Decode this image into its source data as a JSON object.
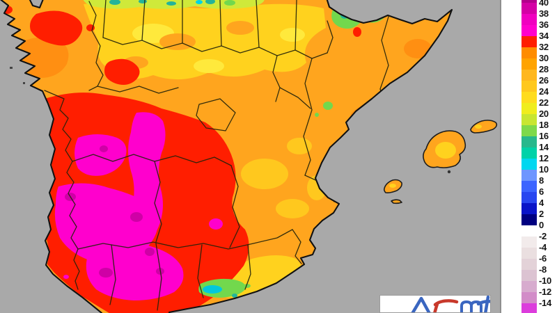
{
  "map": {
    "sea_color": "#a9a9a9",
    "palette": {
      "base_orange": "#ffa51e",
      "orange_dark": "#ff8f12",
      "yellow": "#ffd21e",
      "yellow_orange": "#ffc81e",
      "yellow_bright": "#ffe93c",
      "green_yellow": "#cfe93a",
      "green": "#72d84d",
      "teal": "#23b39a",
      "cyan": "#00c8dc",
      "cyan_bright": "#00d2e6",
      "red": "#ff1e00",
      "magenta": "#ff00cd",
      "dark_magenta": "#cf00a6",
      "border": "#23230a",
      "coast": "#111111"
    }
  },
  "legend": {
    "upper_labels": [
      "40",
      "38",
      "36",
      "34",
      "32",
      "30",
      "28",
      "26",
      "24",
      "22",
      "20",
      "18",
      "16",
      "14",
      "12",
      "10",
      "8",
      "6",
      "4",
      "2",
      "0"
    ],
    "upper_colors": [
      "#b3008c",
      "#d400a5",
      "#f000c0",
      "#ff00cd",
      "#ff1e00",
      "#ff8c00",
      "#ffa300",
      "#ffb71e",
      "#ffc81e",
      "#ffdc1e",
      "#f0ed1e",
      "#c8e632",
      "#7ed94b",
      "#28b88c",
      "#00d2a8",
      "#00d7f0",
      "#6e96ff",
      "#3c64ff",
      "#2846f0",
      "#0a14c8",
      "#000080"
    ],
    "lower_labels": [
      "-2",
      "-4",
      "-6",
      "-8",
      "-10",
      "-12",
      "-14"
    ],
    "lower_colors": [
      "#f2ebeb",
      "#eadfe0",
      "#e3d2d8",
      "#dcc3d2",
      "#d7abce",
      "#d28cc8",
      "#dc3cdc"
    ]
  },
  "logo": {
    "name": "AEMET",
    "blue": "#3a66c0",
    "red": "#c8392b",
    "background": "#ffffff"
  }
}
